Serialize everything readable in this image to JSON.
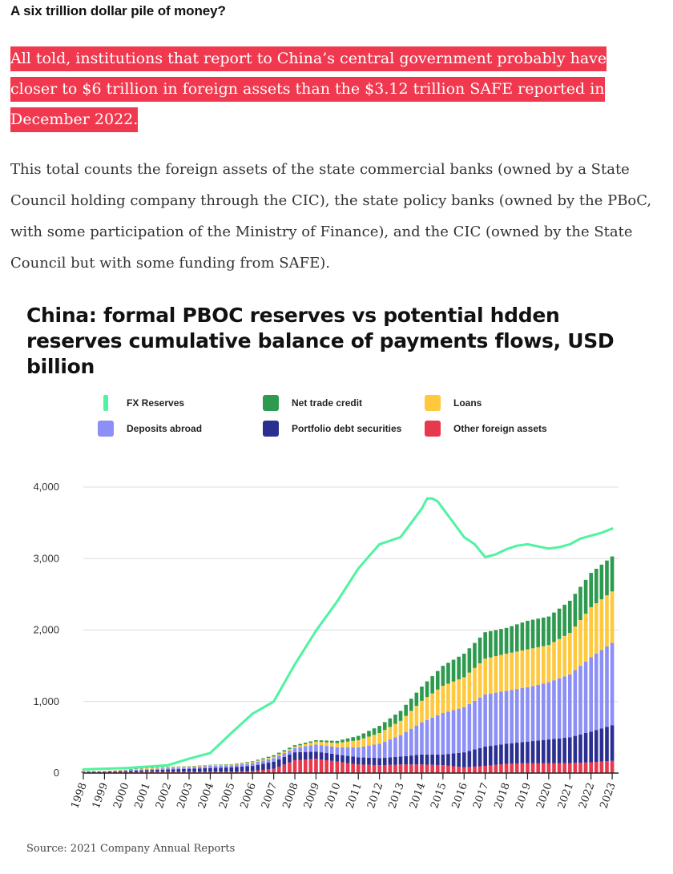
{
  "article": {
    "heading": "A six trillion dollar pile of money?",
    "highlight": "All told, institutions that report to China’s central government probably have closer to $6 trillion in foreign assets than the $3.12 trillion SAFE reported in December 2022.",
    "paragraph": "This total counts the foreign assets of the state commercial banks (owned by a State Council holding company through the CIC), the state policy banks (owned by the PBoC, with some participation of the Ministry of Finance), and the CIC (owned by the State Council but with some funding from SAFE)."
  },
  "colors": {
    "highlight_bg": "#f0394f",
    "fx_line": "#4ff3a0",
    "net_trade_credit": "#2e9a4f",
    "loans": "#ffc83d",
    "deposits_abroad": "#8c8ff5",
    "portfolio_debt": "#2b2f91",
    "other_foreign": "#e8384d"
  },
  "chart_data": {
    "type": "bar",
    "stacked_bars_with_line": true,
    "title": "China: formal PBOC reserves vs potential hdden reserves cumulative balance of payments flows, USD billion",
    "xlabel": "",
    "ylabel": "",
    "ylim": [
      0,
      4000
    ],
    "yticks": [
      "0",
      "1,000",
      "2,000",
      "3,000",
      "4,000"
    ],
    "xticks": [
      "1998",
      "1999",
      "2000",
      "2001",
      "2002",
      "2003",
      "2004",
      "2005",
      "2006",
      "2007",
      "2008",
      "2009",
      "2010",
      "2011",
      "2012",
      "2013",
      "2014",
      "2015",
      "2016",
      "2017",
      "2018",
      "2019",
      "2020",
      "2021",
      "2022",
      "2023"
    ],
    "legend": [
      {
        "name": "FX Reserves",
        "kind": "line",
        "color_key": "fx_line"
      },
      {
        "name": "Net trade credit",
        "kind": "bar",
        "color_key": "net_trade_credit"
      },
      {
        "name": "Loans",
        "kind": "bar",
        "color_key": "loans"
      },
      {
        "name": "Deposits abroad",
        "kind": "bar",
        "color_key": "deposits_abroad"
      },
      {
        "name": "Portfolio debt securities",
        "kind": "bar",
        "color_key": "portfolio_debt"
      },
      {
        "name": "Other foreign assets",
        "kind": "bar",
        "color_key": "other_foreign"
      }
    ],
    "line_series": {
      "name": "FX Reserves",
      "x": [
        1998,
        1999,
        2000,
        2001,
        2002,
        2003,
        2004,
        2005,
        2006,
        2007,
        2008,
        2009,
        2010,
        2011,
        2012,
        2013,
        2014,
        2014.25,
        2014.5,
        2014.75,
        2015,
        2015.5,
        2016,
        2016.5,
        2017,
        2017.5,
        2018,
        2018.5,
        2019,
        2019.5,
        2020,
        2020.5,
        2021,
        2021.5,
        2022,
        2022.5,
        2023
      ],
      "y": [
        50,
        60,
        70,
        90,
        110,
        200,
        280,
        560,
        830,
        1000,
        1520,
        1990,
        2400,
        2860,
        3200,
        3300,
        3700,
        3840,
        3840,
        3800,
        3700,
        3500,
        3300,
        3200,
        3020,
        3060,
        3130,
        3180,
        3200,
        3170,
        3140,
        3160,
        3200,
        3280,
        3320,
        3360,
        3420
      ]
    },
    "bar_series": {
      "categories": [
        "1998",
        "1999",
        "2000",
        "2001",
        "2002",
        "2003",
        "2004",
        "2005",
        "2006",
        "2007",
        "2008",
        "2009",
        "2010",
        "2011",
        "2012",
        "2013",
        "2014",
        "2015",
        "2016",
        "2017",
        "2018",
        "2019",
        "2020",
        "2021",
        "2022",
        "2023"
      ],
      "series": [
        {
          "name": "Other foreign assets",
          "color_key": "other_foreign",
          "values": [
            10,
            10,
            15,
            20,
            20,
            20,
            20,
            20,
            30,
            60,
            180,
            200,
            160,
            120,
            110,
            120,
            120,
            110,
            80,
            100,
            130,
            140,
            140,
            140,
            150,
            170
          ]
        },
        {
          "name": "Portfolio debt securities",
          "color_key": "portfolio_debt",
          "values": [
            10,
            10,
            15,
            20,
            30,
            40,
            50,
            60,
            70,
            100,
            110,
            100,
            100,
            100,
            100,
            110,
            140,
            150,
            210,
            270,
            280,
            300,
            330,
            360,
            430,
            500
          ]
        },
        {
          "name": "Deposits abroad",
          "color_key": "deposits_abroad",
          "values": [
            5,
            5,
            10,
            15,
            20,
            20,
            30,
            30,
            40,
            50,
            60,
            100,
            100,
            140,
            200,
            300,
            450,
            580,
            630,
            730,
            740,
            760,
            800,
            880,
            1040,
            1150
          ]
        },
        {
          "name": "Loans",
          "color_key": "loans",
          "values": [
            5,
            5,
            10,
            15,
            15,
            10,
            10,
            10,
            15,
            20,
            20,
            40,
            60,
            100,
            150,
            200,
            300,
            380,
            420,
            500,
            520,
            530,
            520,
            580,
            700,
            720
          ]
        },
        {
          "name": "Net trade credit",
          "color_key": "net_trade_credit",
          "values": [
            0,
            0,
            0,
            5,
            5,
            5,
            5,
            5,
            10,
            20,
            20,
            20,
            30,
            60,
            100,
            140,
            200,
            280,
            330,
            370,
            360,
            400,
            400,
            450,
            480,
            490
          ]
        }
      ]
    }
  },
  "source": "Source: 2021 Company Annual Reports"
}
